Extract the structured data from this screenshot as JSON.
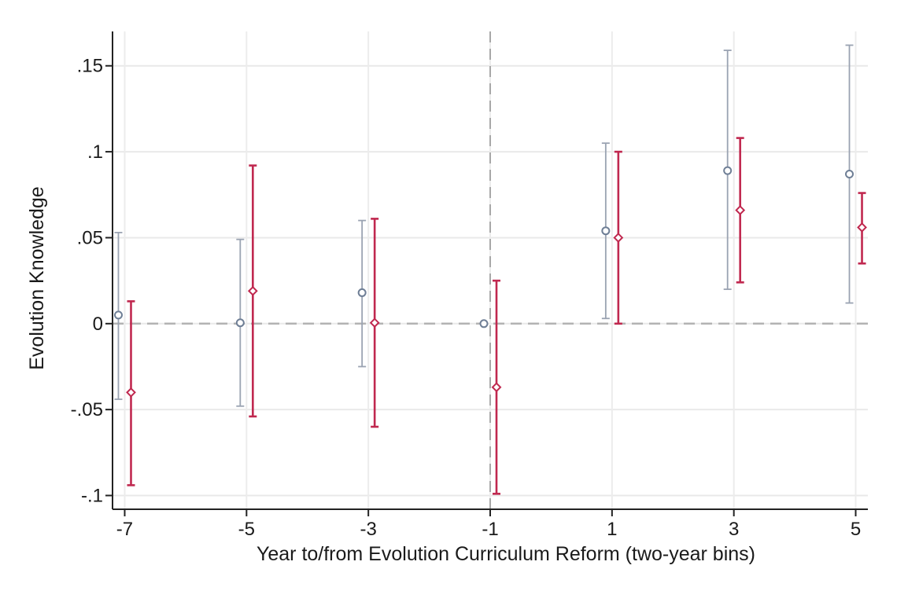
{
  "chart_data": {
    "type": "scatter",
    "title": "",
    "xlabel": "Year to/from Evolution Curriculum Reform (two-year bins)",
    "ylabel": "Evolution Knowledge",
    "x": [
      -7,
      -5,
      -3,
      -1,
      1,
      3,
      5
    ],
    "x_tick_labels": [
      "-7",
      "-5",
      "-3",
      "-1",
      "1",
      "3",
      "5"
    ],
    "y_ticks": [
      -0.1,
      -0.05,
      0,
      0.05,
      0.1,
      0.15
    ],
    "y_tick_labels": [
      "-.1",
      "-.05",
      "0",
      ".05",
      ".1",
      ".15"
    ],
    "xlim": [
      -7.2,
      5.2
    ],
    "ylim": [
      -0.108,
      0.17
    ],
    "grid": true,
    "reference_lines": {
      "horizontal_y": 0,
      "vertical_x": -1
    },
    "series": [
      {
        "marker": "circle",
        "color": "#6f7f96",
        "points": [
          {
            "x": -7,
            "y": 0.005,
            "lower": -0.044,
            "upper": 0.053
          },
          {
            "x": -5,
            "y": 0.0005,
            "lower": -0.048,
            "upper": 0.049
          },
          {
            "x": -3,
            "y": 0.018,
            "lower": -0.025,
            "upper": 0.06
          },
          {
            "x": -1,
            "y": 0.0,
            "lower": 0.0,
            "upper": 0.0
          },
          {
            "x": 1,
            "y": 0.054,
            "lower": 0.003,
            "upper": 0.105
          },
          {
            "x": 3,
            "y": 0.089,
            "lower": 0.02,
            "upper": 0.159
          },
          {
            "x": 5,
            "y": 0.087,
            "lower": 0.012,
            "upper": 0.162
          }
        ]
      },
      {
        "marker": "diamond",
        "color": "#c0284f",
        "points": [
          {
            "x": -7,
            "y": -0.04,
            "lower": -0.094,
            "upper": 0.013
          },
          {
            "x": -5,
            "y": 0.019,
            "lower": -0.054,
            "upper": 0.092
          },
          {
            "x": -3,
            "y": 0.0005,
            "lower": -0.06,
            "upper": 0.061
          },
          {
            "x": -1,
            "y": -0.037,
            "lower": -0.099,
            "upper": 0.025
          },
          {
            "x": 1,
            "y": 0.05,
            "lower": 0.0,
            "upper": 0.1
          },
          {
            "x": 3,
            "y": 0.066,
            "lower": 0.024,
            "upper": 0.108
          },
          {
            "x": 5,
            "y": 0.056,
            "lower": 0.035,
            "upper": 0.076
          }
        ]
      }
    ]
  }
}
